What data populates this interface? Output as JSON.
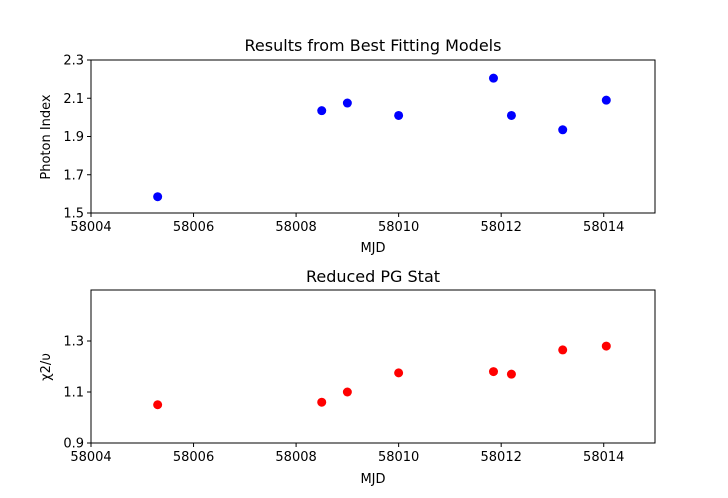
{
  "chart_data": [
    {
      "type": "scatter",
      "title": "Results from Best Fitting Models",
      "xlabel": "MJD",
      "ylabel": "Photon Index",
      "xlim": [
        58004,
        58015
      ],
      "ylim": [
        1.5,
        2.3
      ],
      "x_ticks": [
        "58004",
        "58006",
        "58008",
        "58010",
        "58012",
        "58014"
      ],
      "y_ticks": [
        "1.5",
        "1.7",
        "1.9",
        "2.1",
        "2.3"
      ],
      "color": "#0000ff",
      "grid": false,
      "points": [
        {
          "x": 58005.3,
          "y": 1.585
        },
        {
          "x": 58008.5,
          "y": 2.035
        },
        {
          "x": 58009.0,
          "y": 2.075
        },
        {
          "x": 58010.0,
          "y": 2.01
        },
        {
          "x": 58011.85,
          "y": 2.205
        },
        {
          "x": 58012.2,
          "y": 2.01
        },
        {
          "x": 58013.2,
          "y": 1.935
        },
        {
          "x": 58014.05,
          "y": 2.09
        }
      ]
    },
    {
      "type": "scatter",
      "title": "Reduced PG Stat",
      "xlabel": "MJD",
      "ylabel": "χ2/υ",
      "xlim": [
        58004,
        58015
      ],
      "ylim": [
        0.9,
        1.5
      ],
      "x_ticks": [
        "58004",
        "58006",
        "58008",
        "58010",
        "58012",
        "58014"
      ],
      "y_ticks": [
        "0.9",
        "1.1",
        "1.3"
      ],
      "color": "#ff0000",
      "grid": false,
      "points": [
        {
          "x": 58005.3,
          "y": 1.05
        },
        {
          "x": 58008.5,
          "y": 1.06
        },
        {
          "x": 58009.0,
          "y": 1.1
        },
        {
          "x": 58010.0,
          "y": 1.175
        },
        {
          "x": 58011.85,
          "y": 1.18
        },
        {
          "x": 58012.2,
          "y": 1.17
        },
        {
          "x": 58013.2,
          "y": 1.265
        },
        {
          "x": 58014.05,
          "y": 1.28
        }
      ]
    }
  ]
}
